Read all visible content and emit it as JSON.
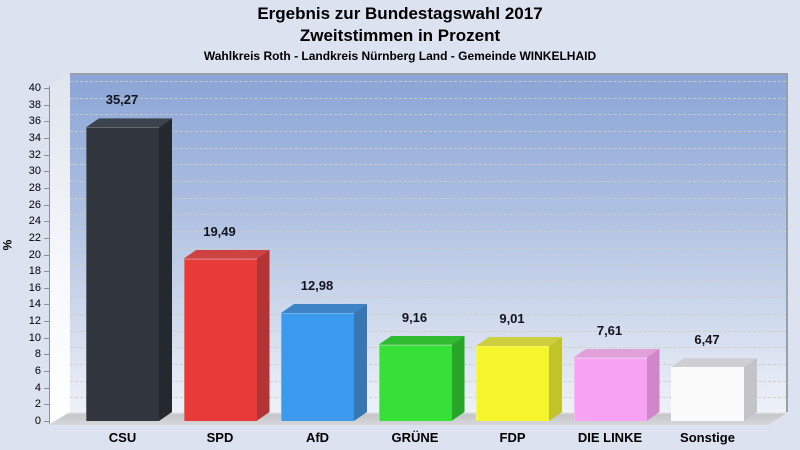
{
  "header": {
    "title_line1": "Ergebnis zur Bundestagswahl 2017",
    "title_line2": "Zweitstimmen in Prozent",
    "subtitle": "Wahlkreis Roth - Landkreis Nürnberg Land - Gemeinde WINKELHAID"
  },
  "chart_data": {
    "type": "bar",
    "style": "3d-column",
    "title": "Ergebnis zur Bundestagswahl 2017",
    "subtitle2": "Zweitstimmen in Prozent",
    "subtitle3": "Wahlkreis Roth - Landkreis Nürnberg Land - Gemeinde WINKELHAID",
    "categories": [
      "CSU",
      "SPD",
      "AfD",
      "GRÜNE",
      "FDP",
      "DIE LINKE",
      "Sonstige"
    ],
    "values": [
      35.27,
      19.49,
      12.98,
      9.16,
      9.01,
      7.61,
      6.47
    ],
    "value_labels": [
      "35,27",
      "19,49",
      "12,98",
      "9,16",
      "9,01",
      "7,61",
      "6,47"
    ],
    "bar_colors": [
      {
        "front": "#31363e",
        "top": "#3d434c",
        "side": "#24282f"
      },
      {
        "front": "#e93a3a",
        "top": "#cf4242",
        "side": "#b23434"
      },
      {
        "front": "#3b99ee",
        "top": "#3c84c6",
        "side": "#3877b2"
      },
      {
        "front": "#37e037",
        "top": "#30bc30",
        "side": "#28a428"
      },
      {
        "front": "#f5f52c",
        "top": "#cdd03e",
        "side": "#c2c22b"
      },
      {
        "front": "#f8a2f3",
        "top": "#e2a0da",
        "side": "#d086ca"
      },
      {
        "front": "#fafafa",
        "top": "#cfcfd1",
        "side": "#c4c4c6"
      }
    ],
    "xlabel": "",
    "ylabel": "%",
    "ylim": [
      0,
      40
    ],
    "ytick_step": 2,
    "grid": "horizontal-dashed",
    "legend": "none",
    "panel_gradient_top": "#8aa5d6",
    "panel_gradient_bottom": "#eef1f8",
    "page_background": "#dde2f0"
  }
}
